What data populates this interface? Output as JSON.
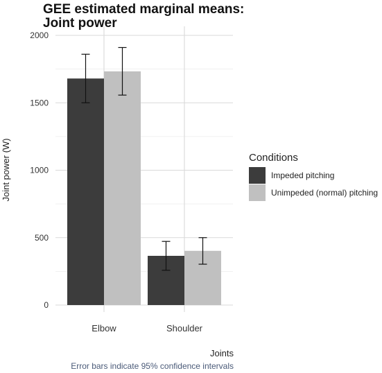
{
  "chart_data": {
    "type": "bar",
    "title_lines": [
      "GEE estimated marginal means:",
      "Joint power"
    ],
    "xlabel": "Joints",
    "ylabel": "Joint power (W)",
    "caption": "Error bars indicate 95% confidence intervals",
    "categories": [
      "Elbow",
      "Shoulder"
    ],
    "ylim": [
      0,
      2100
    ],
    "yticks": [
      0,
      500,
      1000,
      1500,
      2000
    ],
    "grid": true,
    "legend_title": "Conditions",
    "legend_position": "right",
    "series": [
      {
        "name": "Impeded pitching",
        "color": "#3c3c3c",
        "values": [
          1680,
          365
        ],
        "ci_low": [
          1500,
          258
        ],
        "ci_high": [
          1860,
          472
        ]
      },
      {
        "name": "Unimpeded (normal) pitching",
        "color": "#c0c0c0",
        "values": [
          1733,
          402
        ],
        "ci_low": [
          1557,
          303
        ],
        "ci_high": [
          1910,
          500
        ]
      }
    ]
  }
}
